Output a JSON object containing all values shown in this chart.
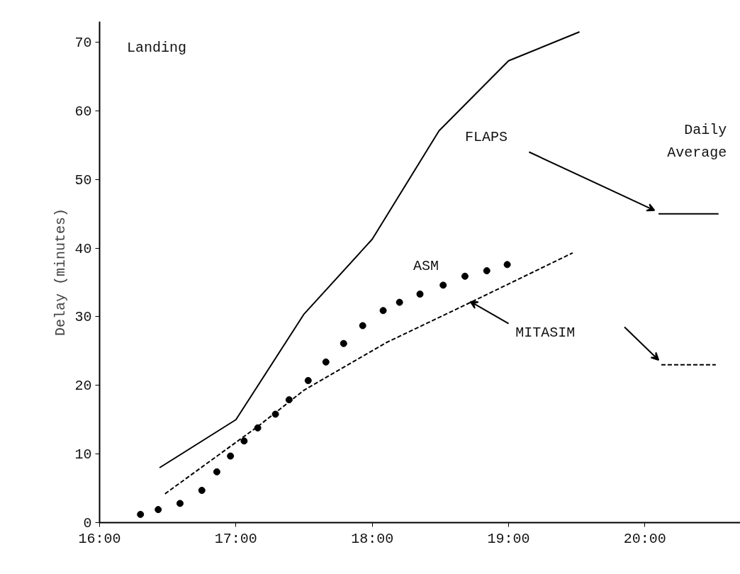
{
  "chart_data": {
    "type": "line",
    "ylabel": "Delay (minutes)",
    "annotations": [
      "Landing",
      "Daily Average"
    ],
    "xlim": [
      16,
      20.7
    ],
    "ylim": [
      0,
      73
    ],
    "xticks": [
      {
        "value": 16,
        "label": "16:00"
      },
      {
        "value": 17,
        "label": "17:00"
      },
      {
        "value": 18,
        "label": "18:00"
      },
      {
        "value": 19,
        "label": "19:00"
      },
      {
        "value": 20,
        "label": "20:00"
      }
    ],
    "yticks": [
      0,
      10,
      20,
      30,
      40,
      50,
      60,
      70
    ],
    "grid": false,
    "series": [
      {
        "name": "FLAPS",
        "line_style": "solid",
        "color": "#000000",
        "x": [
          16.44,
          17.0,
          17.5,
          18.0,
          18.49,
          19.0,
          19.52
        ],
        "values": [
          8,
          15,
          30.4,
          41.3,
          57.1,
          67.3,
          71.5
        ]
      },
      {
        "line_style": "solid",
        "color": "#000000",
        "x": [
          20.1,
          20.54
        ],
        "values": [
          45,
          45
        ]
      },
      {
        "name": "ASM",
        "type": "scatter",
        "marker": "circle",
        "color": "#000000",
        "x": [
          16.3,
          16.43,
          16.59,
          16.75,
          16.86,
          16.96,
          17.06,
          17.16,
          17.29,
          17.39,
          17.53,
          17.66,
          17.79,
          17.93,
          18.08,
          18.2,
          18.35,
          18.52,
          18.68,
          18.84,
          18.99
        ],
        "values": [
          1.2,
          1.9,
          2.8,
          4.7,
          7.4,
          9.7,
          11.9,
          13.8,
          15.8,
          17.9,
          20.7,
          23.4,
          26.1,
          28.7,
          30.9,
          32.1,
          33.3,
          34.6,
          35.9,
          36.7,
          37.6
        ]
      },
      {
        "name": "MITASIM",
        "line_style": "dashed",
        "color": "#000000",
        "x": [
          16.48,
          17.16,
          17.5,
          18.1,
          18.67,
          19.47
        ],
        "values": [
          4.2,
          14.0,
          19.3,
          26.2,
          31.6,
          39.3
        ]
      },
      {
        "line_style": "dashed",
        "color": "#000000",
        "x": [
          20.12,
          20.52
        ],
        "values": [
          23,
          23
        ]
      }
    ]
  }
}
